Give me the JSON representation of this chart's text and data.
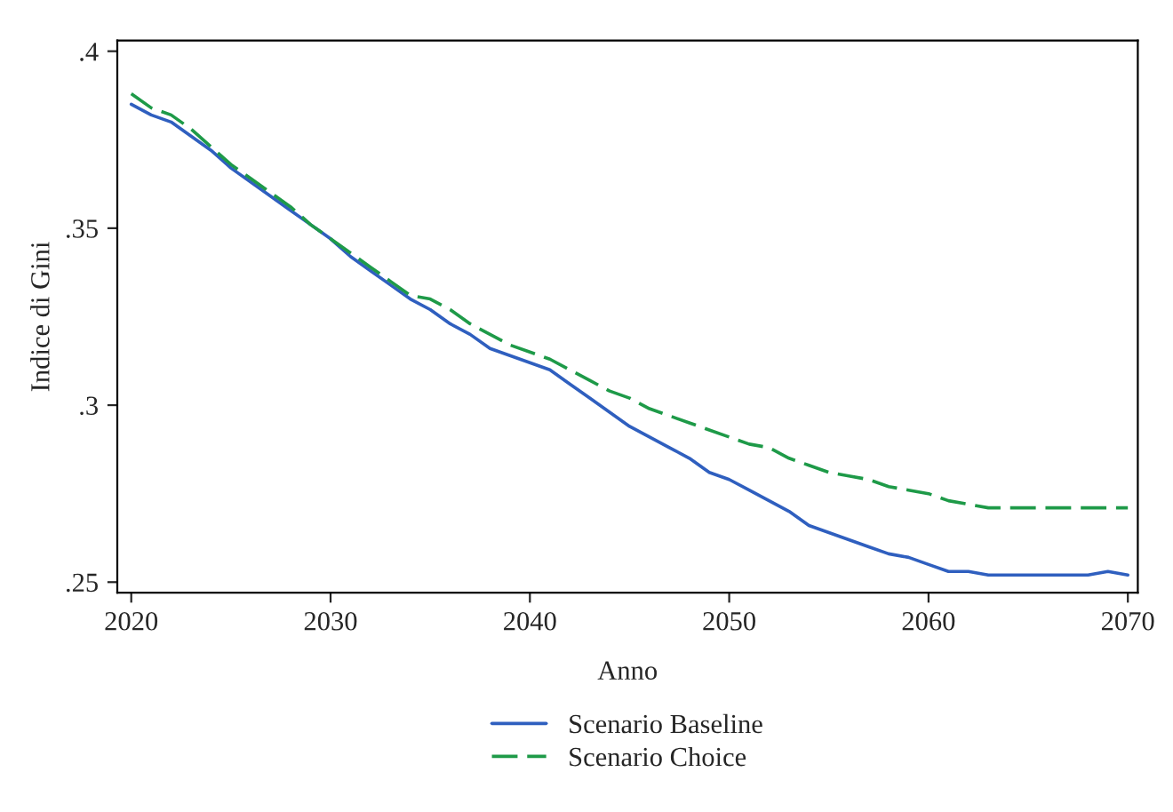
{
  "chart_data": {
    "type": "line",
    "xlabel": "Anno",
    "ylabel": "Indice di Gini",
    "x": [
      2020,
      2021,
      2022,
      2023,
      2024,
      2025,
      2026,
      2027,
      2028,
      2029,
      2030,
      2031,
      2032,
      2033,
      2034,
      2035,
      2036,
      2037,
      2038,
      2039,
      2040,
      2041,
      2042,
      2043,
      2044,
      2045,
      2046,
      2047,
      2048,
      2049,
      2050,
      2051,
      2052,
      2053,
      2054,
      2055,
      2056,
      2057,
      2058,
      2059,
      2060,
      2061,
      2062,
      2063,
      2064,
      2065,
      2066,
      2067,
      2068,
      2069,
      2070
    ],
    "series": [
      {
        "name": "Scenario Baseline",
        "color": "#2f5fbf",
        "line_style": "solid",
        "values": [
          0.385,
          0.382,
          0.38,
          0.376,
          0.372,
          0.367,
          0.363,
          0.359,
          0.355,
          0.351,
          0.347,
          0.342,
          0.338,
          0.334,
          0.33,
          0.327,
          0.323,
          0.32,
          0.316,
          0.314,
          0.312,
          0.31,
          0.306,
          0.302,
          0.298,
          0.294,
          0.291,
          0.288,
          0.285,
          0.281,
          0.279,
          0.276,
          0.273,
          0.27,
          0.266,
          0.264,
          0.262,
          0.26,
          0.258,
          0.257,
          0.255,
          0.253,
          0.253,
          0.252,
          0.252,
          0.252,
          0.252,
          0.252,
          0.252,
          0.253,
          0.252
        ]
      },
      {
        "name": "Scenario Choice",
        "color": "#1e9a48",
        "line_style": "dashed",
        "values": [
          0.388,
          0.384,
          0.382,
          0.378,
          0.373,
          0.368,
          0.364,
          0.36,
          0.356,
          0.351,
          0.347,
          0.343,
          0.339,
          0.335,
          0.331,
          0.33,
          0.327,
          0.323,
          0.32,
          0.317,
          0.315,
          0.313,
          0.31,
          0.307,
          0.304,
          0.302,
          0.299,
          0.297,
          0.295,
          0.293,
          0.291,
          0.289,
          0.288,
          0.285,
          0.283,
          0.281,
          0.28,
          0.279,
          0.277,
          0.276,
          0.275,
          0.273,
          0.272,
          0.271,
          0.271,
          0.271,
          0.271,
          0.271,
          0.271,
          0.271,
          0.271
        ]
      }
    ],
    "xlim": [
      2019.3,
      2070.5
    ],
    "ylim": [
      0.247,
      0.403
    ],
    "xticks": [
      2020,
      2030,
      2040,
      2050,
      2060,
      2070
    ],
    "yticks": [
      {
        "value": 0.25,
        "label": ".25"
      },
      {
        "value": 0.3,
        "label": ".3"
      },
      {
        "value": 0.35,
        "label": ".35"
      },
      {
        "value": 0.4,
        "label": ".4"
      }
    ],
    "grid": false,
    "legend": "bottom"
  }
}
